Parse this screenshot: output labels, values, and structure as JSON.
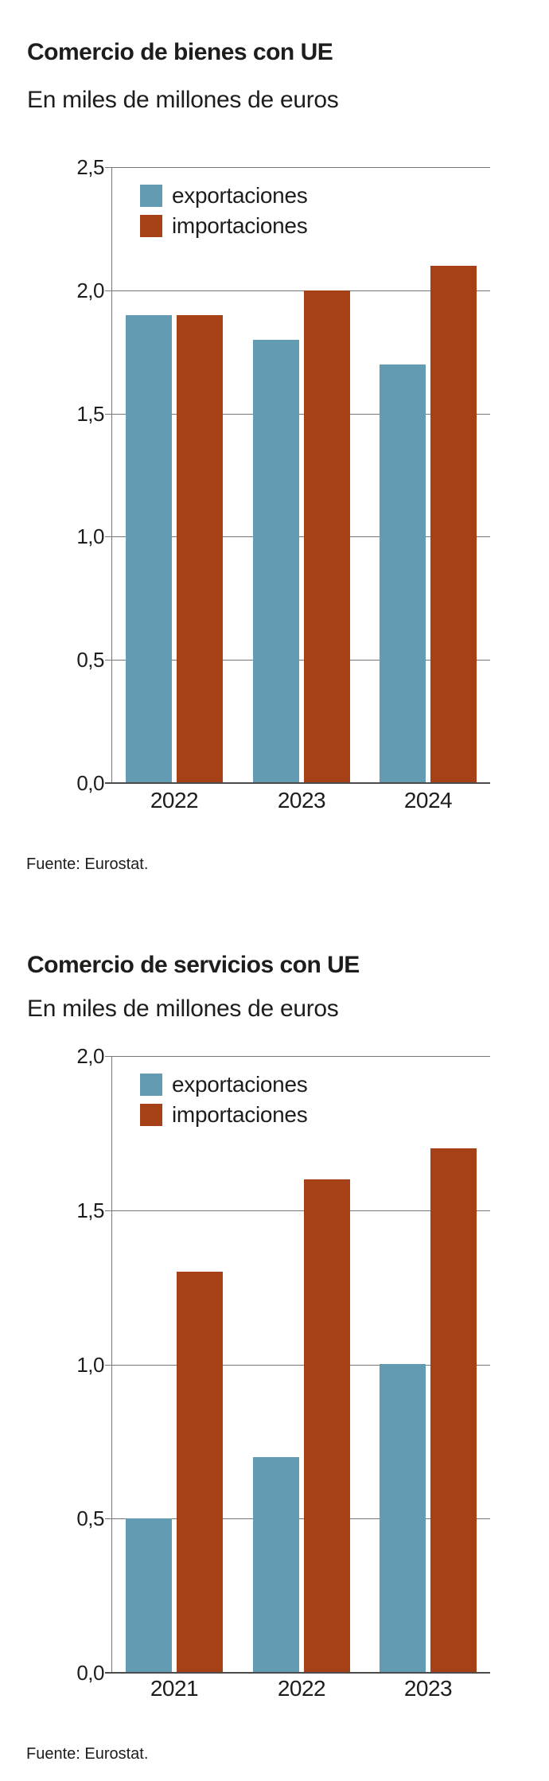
{
  "page": {
    "background": "#ffffff",
    "text_color": "#1d1d1b"
  },
  "colors": {
    "exportaciones": "#639bb3",
    "importaciones": "#a54017",
    "gridline": "#767676",
    "baseline": "#4b4b4b"
  },
  "chart_data": [
    {
      "type": "bar",
      "title": "Comercio de bienes con UE",
      "subtitle": "En miles de millones de euros",
      "source": "Fuente: Eurostat.",
      "categories": [
        "2022",
        "2023",
        "2024"
      ],
      "series": [
        {
          "name": "exportaciones",
          "color": "#639bb3",
          "values": [
            1.9,
            1.8,
            1.7
          ]
        },
        {
          "name": "importaciones",
          "color": "#a54017",
          "values": [
            1.9,
            2.0,
            2.1
          ]
        }
      ],
      "xlabel": "",
      "ylabel": "",
      "ylim": [
        0,
        2.5
      ],
      "ytick_step": 0.5,
      "ytick_labels": [
        "0,0",
        "0,5",
        "1,0",
        "1,5",
        "2,0",
        "2,5"
      ],
      "grid": true,
      "legend_position": "top-left-inside"
    },
    {
      "type": "bar",
      "title": "Comercio de servicios con UE",
      "subtitle": "En miles de millones de euros",
      "source": "Fuente: Eurostat.",
      "categories": [
        "2021",
        "2022",
        "2023"
      ],
      "series": [
        {
          "name": "exportaciones",
          "color": "#639bb3",
          "values": [
            0.5,
            0.7,
            1.0
          ]
        },
        {
          "name": "importaciones",
          "color": "#a54017",
          "values": [
            1.3,
            1.6,
            1.7
          ]
        }
      ],
      "xlabel": "",
      "ylabel": "",
      "ylim": [
        0,
        2.0
      ],
      "ytick_step": 0.5,
      "ytick_labels": [
        "0,0",
        "0,5",
        "1,0",
        "1,5",
        "2,0"
      ],
      "grid": true,
      "legend_position": "top-left-inside"
    }
  ]
}
